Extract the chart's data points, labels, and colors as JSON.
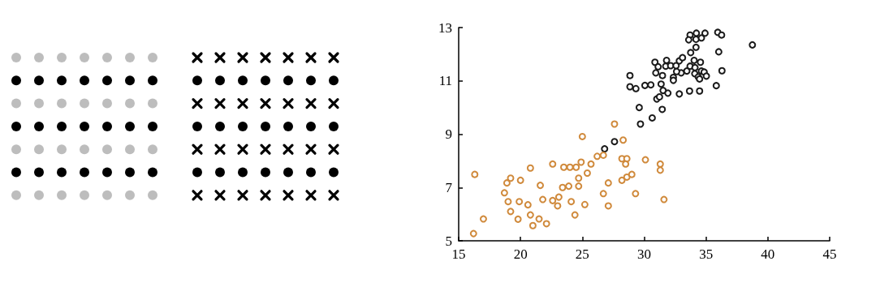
{
  "chart_data": {
    "type": "scatter",
    "marker": "circle",
    "grid": false,
    "xlim": [
      15,
      45
    ],
    "xticks": [
      15,
      20,
      25,
      30,
      35,
      40,
      45
    ],
    "ylim": [
      5,
      13
    ],
    "yticks": [
      5,
      7,
      9,
      11,
      13
    ],
    "series": [
      {
        "color": "#1a1a1a",
        "x": [
          26.8,
          27.6,
          29.7,
          29.6,
          30.65,
          31.46,
          28.85,
          28.85,
          29.33,
          30.06,
          30.54,
          31.37,
          31.02,
          31.24,
          31.53,
          31.92,
          32.84,
          33.67,
          34.48,
          35.83,
          30.87,
          31.13,
          30.94,
          31.48,
          31.81,
          31.74,
          32.14,
          32.36,
          32.36,
          32.58,
          32.84,
          33.1,
          32.99,
          32.62,
          33.45,
          33.71,
          34.04,
          34.55,
          34.11,
          33.76,
          34.19,
          34.09,
          34.37,
          34.63,
          34.85,
          35.03,
          34.48,
          33.71,
          34.22,
          34.92,
          33.6,
          34.19,
          34.63,
          35.95,
          36.26,
          36.03,
          36.29,
          38.75
        ],
        "values": [
          8.45,
          8.72,
          9.38,
          10.0,
          9.61,
          9.93,
          11.2,
          10.78,
          10.71,
          10.83,
          10.85,
          10.88,
          10.32,
          10.4,
          10.64,
          10.54,
          10.51,
          10.62,
          10.62,
          10.82,
          11.7,
          11.53,
          11.3,
          11.2,
          11.77,
          11.55,
          11.57,
          11.13,
          11.02,
          11.57,
          11.75,
          11.87,
          11.3,
          11.35,
          11.37,
          11.55,
          11.77,
          11.7,
          11.5,
          12.06,
          12.26,
          11.27,
          11.15,
          11.37,
          11.33,
          11.18,
          11.07,
          12.72,
          12.79,
          12.79,
          12.54,
          12.56,
          12.61,
          12.82,
          12.72,
          12.09,
          11.38,
          12.35
        ]
      },
      {
        "color": "#d08a3c",
        "x": [
          16.3,
          17.0,
          16.2,
          19.2,
          18.9,
          18.7,
          19.0,
          19.2,
          19.8,
          20.0,
          19.9,
          20.6,
          20.8,
          20.8,
          21.0,
          21.5,
          21.6,
          21.8,
          22.1,
          22.6,
          22.6,
          23.0,
          23.1,
          23.4,
          23.9,
          23.5,
          24.0,
          24.5,
          24.1,
          24.4,
          24.7,
          24.7,
          24.9,
          25.0,
          25.4,
          25.2,
          25.7,
          26.2,
          26.7,
          26.7,
          27.1,
          27.1,
          27.6,
          28.3,
          28.2,
          28.6,
          28.5,
          28.2,
          28.6,
          29.0,
          29.3,
          30.1,
          31.3,
          31.3,
          31.6
        ],
        "values": [
          7.49,
          5.82,
          5.27,
          7.35,
          7.17,
          6.8,
          6.47,
          6.1,
          5.81,
          7.27,
          6.47,
          6.35,
          7.73,
          5.97,
          5.57,
          5.82,
          7.08,
          6.55,
          5.64,
          7.88,
          6.51,
          6.31,
          6.64,
          7.0,
          7.05,
          7.76,
          7.76,
          7.76,
          6.47,
          5.97,
          7.35,
          7.05,
          7.95,
          8.91,
          7.54,
          6.36,
          7.88,
          8.17,
          8.21,
          6.77,
          7.17,
          6.31,
          9.38,
          8.78,
          8.08,
          8.08,
          7.88,
          7.27,
          7.39,
          7.49,
          6.77,
          8.04,
          7.88,
          7.65,
          6.55
        ]
      }
    ]
  }
}
